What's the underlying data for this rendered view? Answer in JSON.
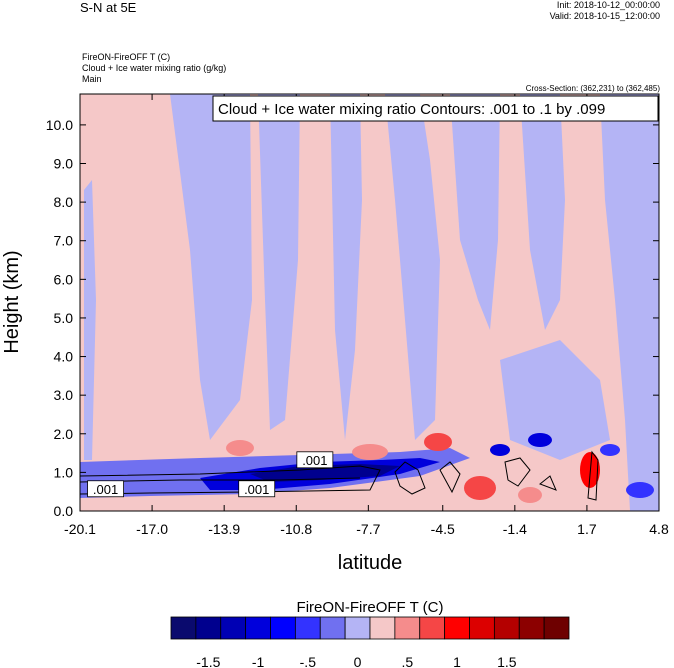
{
  "header": {
    "title": "S-N at 5E",
    "init": "Init: 2018-10-12_00:00:00",
    "valid": "Valid: 2018-10-15_12:00:00",
    "subtitle_1": "FireON-FireOFF T   (C)",
    "subtitle_2": "Cloud + Ice water mixing ratio   (g/kg)",
    "subtitle_3": "Main",
    "cross_section": "Cross-Section: (362,231) to (362,485)"
  },
  "chart_data": {
    "type": "heatmap",
    "contour_title": "Cloud + Ice water mixing ratio Contours: .001 to .1 by .099",
    "xlabel": "latitude",
    "ylabel": "Height (km)",
    "x_ticks": [
      "-20.1",
      "-17.0",
      "-13.9",
      "-10.8",
      "-7.7",
      "-4.5",
      "-1.4",
      "1.7",
      "4.8"
    ],
    "y_ticks": [
      "0.0",
      "1.0",
      "2.0",
      "3.0",
      "4.0",
      "5.0",
      "6.0",
      "7.0",
      "8.0",
      "9.0",
      "10.0"
    ],
    "xlim": [
      -20.1,
      4.8
    ],
    "ylim": [
      0,
      10.8
    ],
    "contour_labels": [
      {
        "text": ".001",
        "x": -19.0,
        "y": 0.55
      },
      {
        "text": ".001",
        "x": -12.5,
        "y": 0.55
      },
      {
        "text": ".001",
        "x": -10.0,
        "y": 1.3
      }
    ],
    "colorbar": {
      "title": "FireON-FireOFF T  (C)",
      "levels": [
        "-1.5",
        "-1",
        "-.5",
        "0",
        ".5",
        "1",
        "1.5"
      ],
      "colors": [
        "#0a0a6e",
        "#00008e",
        "#0000b4",
        "#0000dc",
        "#0000ff",
        "#3333ff",
        "#7070f0",
        "#b4b4f5",
        "#f5c8c8",
        "#f58c8c",
        "#f54646",
        "#ff0000",
        "#dc0000",
        "#b40000",
        "#8c0000",
        "#6e0000"
      ]
    }
  }
}
